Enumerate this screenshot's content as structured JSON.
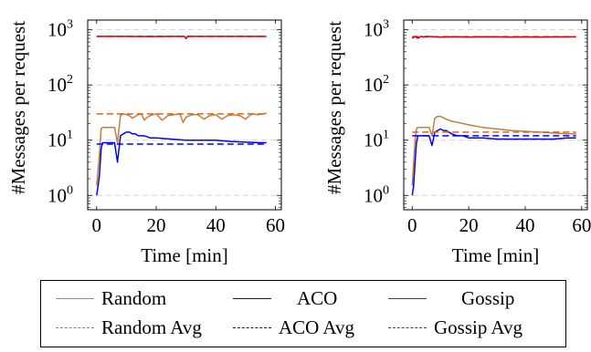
{
  "chart_data": [
    {
      "type": "line",
      "xlabel": "Time [min]",
      "ylabel": "#Messages per request",
      "yscale": "log",
      "xlim": [
        -3,
        62
      ],
      "ylim": [
        0.55,
        1500
      ],
      "xticks": [
        {
          "value": 0,
          "label": "0"
        },
        {
          "value": 20,
          "label": "20"
        },
        {
          "value": 40,
          "label": "40"
        },
        {
          "value": 60,
          "label": "60"
        }
      ],
      "yticks": [
        {
          "value": 1,
          "base": "10",
          "exp": "0"
        },
        {
          "value": 10,
          "base": "10",
          "exp": "1"
        },
        {
          "value": 100,
          "base": "10",
          "exp": "2"
        },
        {
          "value": 1000,
          "base": "10",
          "exp": "3"
        }
      ],
      "grid": "horizontal dashed",
      "series": [
        {
          "name": "Random",
          "color": "#bf8040",
          "style": "solid",
          "x": [
            0,
            0.5,
            1,
            1.5,
            2,
            2.5,
            3,
            4,
            5,
            6,
            7,
            8,
            9,
            10,
            11,
            12,
            13,
            14,
            15,
            16,
            17,
            18,
            19,
            20,
            22,
            24,
            26,
            28,
            29,
            30,
            32,
            34,
            36,
            38,
            40,
            42,
            44,
            46,
            48,
            50,
            52,
            54,
            56,
            57
          ],
          "y": [
            1.5,
            3,
            6,
            16,
            17,
            17,
            17,
            17,
            17,
            17,
            9,
            28,
            30,
            29,
            28,
            25,
            27,
            29,
            30,
            23,
            26,
            28,
            29,
            30,
            23,
            28,
            29,
            30,
            21,
            26,
            29,
            29,
            24,
            28,
            29,
            24,
            28,
            29,
            28,
            24,
            30,
            29,
            30,
            31
          ]
        },
        {
          "name": "ACO",
          "color": "#0000ff",
          "style": "solid",
          "x": [
            0,
            0.5,
            1,
            1.5,
            2,
            3,
            4,
            5,
            6,
            7,
            8,
            9,
            10,
            11,
            12,
            13,
            14,
            16,
            18,
            20,
            25,
            30,
            35,
            40,
            45,
            50,
            55,
            57
          ],
          "y": [
            1,
            1.5,
            2.5,
            7,
            9,
            9,
            9,
            9,
            9,
            4,
            12,
            13,
            14,
            14,
            13,
            13,
            12,
            12,
            11,
            11,
            10.5,
            10,
            10,
            10,
            9.5,
            9.2,
            9,
            9
          ]
        },
        {
          "name": "Gossip",
          "color": "#e00000",
          "style": "solid",
          "x": [
            0,
            5,
            10,
            15,
            20,
            25,
            29.5,
            30,
            30.5,
            35,
            40,
            45,
            50,
            55,
            57
          ],
          "y": [
            760,
            760,
            760,
            755,
            755,
            760,
            760,
            690,
            760,
            760,
            760,
            760,
            760,
            760,
            760
          ]
        },
        {
          "name": "Random Avg",
          "color": "#d2691e",
          "style": "dashed",
          "x": [
            0,
            57
          ],
          "y": [
            30,
            30
          ]
        },
        {
          "name": "ACO Avg",
          "color": "#0000ff",
          "style": "dashed",
          "x": [
            0,
            57
          ],
          "y": [
            8.5,
            8.5
          ]
        },
        {
          "name": "Gossip Avg",
          "color": "#e00000",
          "style": "dashed",
          "x": [
            0,
            57
          ],
          "y": [
            760,
            760
          ]
        }
      ]
    },
    {
      "type": "line",
      "xlabel": "Time [min]",
      "ylabel": "#Messages per request",
      "yscale": "log",
      "xlim": [
        -3,
        62
      ],
      "ylim": [
        0.55,
        1500
      ],
      "xticks": [
        {
          "value": 0,
          "label": "0"
        },
        {
          "value": 20,
          "label": "20"
        },
        {
          "value": 40,
          "label": "40"
        },
        {
          "value": 60,
          "label": "60"
        }
      ],
      "yticks": [
        {
          "value": 1,
          "base": "10",
          "exp": "0"
        },
        {
          "value": 10,
          "base": "10",
          "exp": "1"
        },
        {
          "value": 100,
          "base": "10",
          "exp": "2"
        },
        {
          "value": 1000,
          "base": "10",
          "exp": "3"
        }
      ],
      "grid": "horizontal dashed",
      "series": [
        {
          "name": "Random",
          "color": "#bf8040",
          "style": "solid",
          "x": [
            0,
            0.5,
            1,
            1.5,
            2,
            3,
            4,
            5,
            6,
            7,
            8,
            9,
            10,
            12,
            14,
            16,
            18,
            20,
            25,
            30,
            35,
            40,
            45,
            50,
            55,
            58
          ],
          "y": [
            1.5,
            4,
            10,
            16,
            17,
            17,
            17,
            17,
            17,
            12,
            25,
            27,
            27,
            24,
            22,
            21,
            20,
            19,
            17,
            16,
            15,
            14.5,
            14,
            13.5,
            13,
            13
          ]
        },
        {
          "name": "ACO",
          "color": "#0000ff",
          "style": "solid",
          "x": [
            0,
            0.5,
            1,
            1.5,
            2,
            3,
            4,
            5,
            6,
            7,
            8,
            9,
            10,
            11,
            12,
            14,
            16,
            18,
            20,
            25,
            30,
            35,
            40,
            45,
            50,
            55,
            58
          ],
          "y": [
            1,
            1.5,
            4,
            9,
            12,
            12,
            12,
            12,
            12,
            8,
            14,
            15,
            16,
            15,
            15,
            13,
            12,
            12,
            11,
            11,
            10.5,
            10.5,
            10.5,
            10.5,
            10.5,
            11,
            11
          ]
        },
        {
          "name": "Gossip",
          "color": "#e00000",
          "style": "solid",
          "x": [
            0,
            1,
            2,
            3,
            4,
            5,
            10,
            15,
            20,
            25,
            30,
            35,
            40,
            45,
            50,
            55,
            58
          ],
          "y": [
            700,
            760,
            700,
            760,
            740,
            760,
            740,
            750,
            740,
            750,
            745,
            740,
            745,
            740,
            745,
            745,
            745
          ]
        },
        {
          "name": "Random Avg",
          "color": "#d2691e",
          "style": "dashed",
          "x": [
            0,
            58
          ],
          "y": [
            14,
            14
          ]
        },
        {
          "name": "ACO Avg",
          "color": "#0000ff",
          "style": "dashed",
          "x": [
            0,
            58
          ],
          "y": [
            12,
            12
          ]
        },
        {
          "name": "Gossip Avg",
          "color": "#e00000",
          "style": "dashed",
          "x": [
            0,
            58
          ],
          "y": [
            750,
            750
          ]
        }
      ]
    }
  ],
  "legend": [
    {
      "label": "Random",
      "color": "#bf8040",
      "style": "solid"
    },
    {
      "label": "ACO",
      "color": "#0000ff",
      "style": "solid"
    },
    {
      "label": "Gossip",
      "color": "#e00000",
      "style": "solid"
    },
    {
      "label": "Random Avg",
      "color": "#d2691e",
      "style": "dashed"
    },
    {
      "label": "ACO Avg",
      "color": "#0000ff",
      "style": "dashed"
    },
    {
      "label": "Gossip Avg",
      "color": "#e00000",
      "style": "dashed"
    }
  ]
}
